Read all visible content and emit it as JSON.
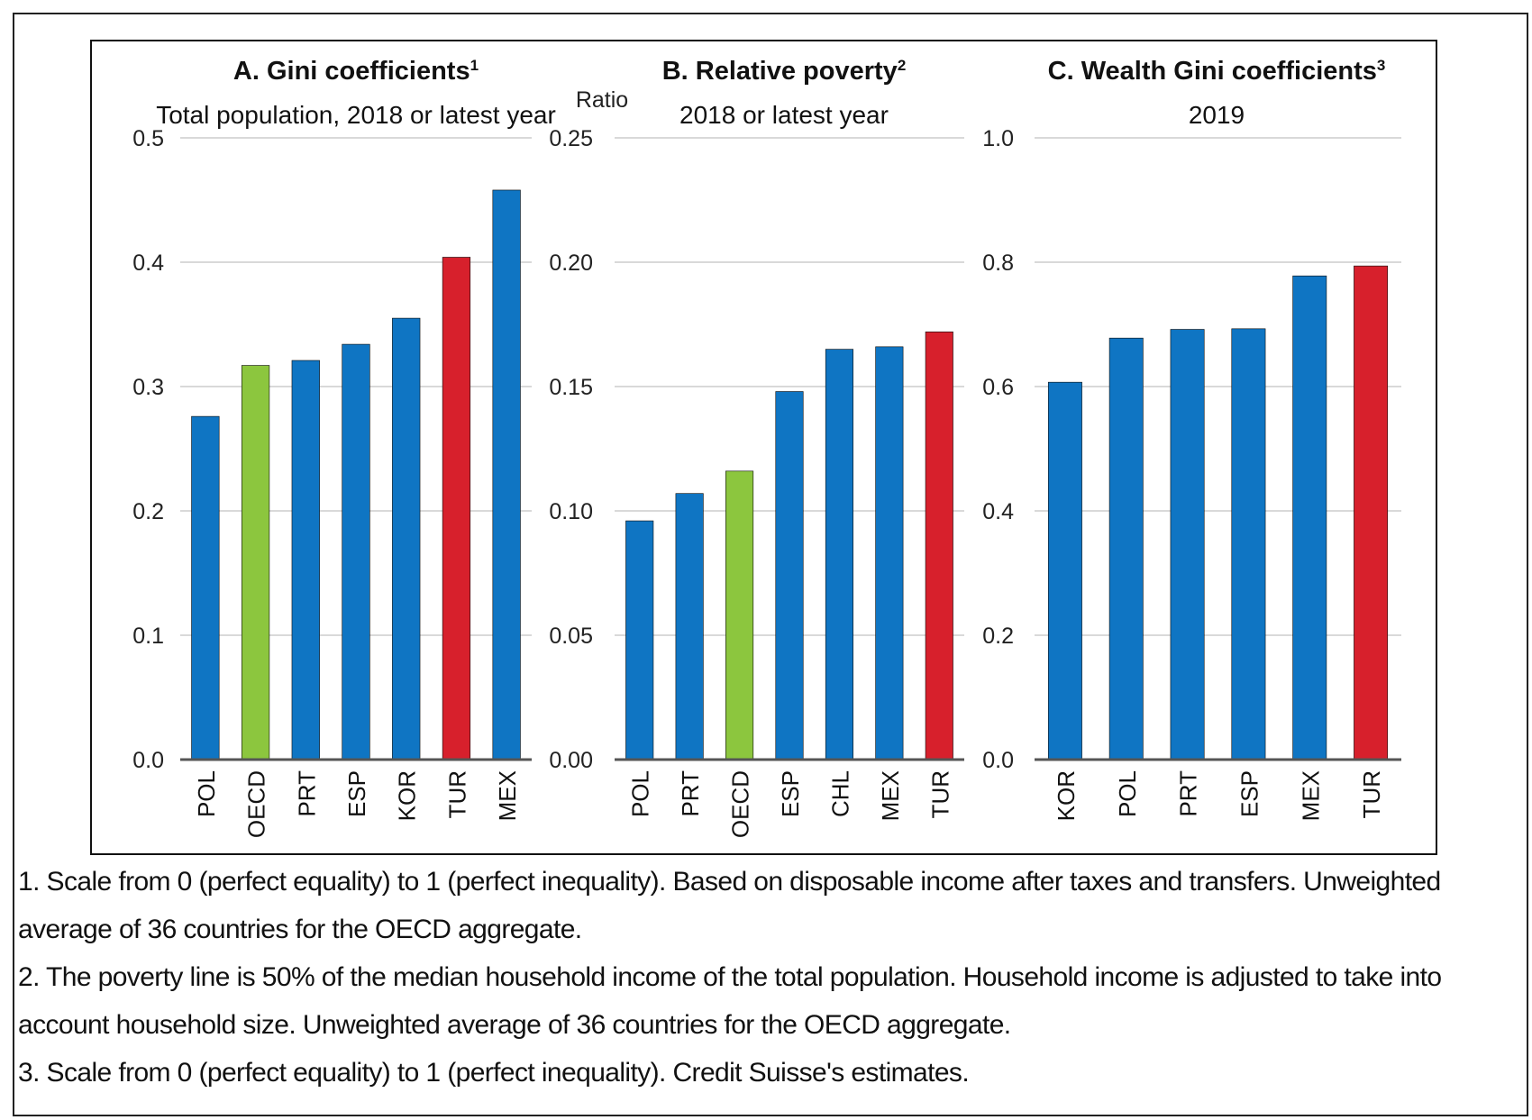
{
  "chart_data": [
    {
      "type": "bar",
      "title": "A. Gini coefficients",
      "title_sup": "1",
      "subtitle": "Total population, 2018 or latest year",
      "unit": "",
      "categories": [
        "POL",
        "OECD",
        "PRT",
        "ESP",
        "KOR",
        "TUR",
        "MEX"
      ],
      "values": [
        0.276,
        0.317,
        0.321,
        0.334,
        0.355,
        0.404,
        0.458
      ],
      "colors": [
        "#0f75c3",
        "#8cc63e",
        "#0f75c3",
        "#0f75c3",
        "#0f75c3",
        "#d7202c",
        "#0f75c3"
      ],
      "ylim": [
        0,
        0.5
      ],
      "yticks": [
        "0.0",
        "0.1",
        "0.2",
        "0.3",
        "0.4",
        "0.5"
      ],
      "grid": true
    },
    {
      "type": "bar",
      "title": "B. Relative poverty",
      "title_sup": "2",
      "subtitle": "2018 or latest year",
      "unit": "Ratio",
      "categories": [
        "POL",
        "PRT",
        "OECD",
        "ESP",
        "CHL",
        "MEX",
        "TUR"
      ],
      "values": [
        0.096,
        0.107,
        0.116,
        0.148,
        0.165,
        0.166,
        0.172
      ],
      "colors": [
        "#0f75c3",
        "#0f75c3",
        "#8cc63e",
        "#0f75c3",
        "#0f75c3",
        "#0f75c3",
        "#d7202c"
      ],
      "ylim": [
        0,
        0.25
      ],
      "yticks": [
        "0.00",
        "0.05",
        "0.10",
        "0.15",
        "0.20",
        "0.25"
      ],
      "grid": true
    },
    {
      "type": "bar",
      "title": "C. Wealth Gini coefficients",
      "title_sup": "3",
      "subtitle": "2019",
      "unit": "",
      "categories": [
        "KOR",
        "POL",
        "PRT",
        "ESP",
        "MEX",
        "TUR"
      ],
      "values": [
        0.607,
        0.678,
        0.692,
        0.693,
        0.778,
        0.794
      ],
      "colors": [
        "#0f75c3",
        "#0f75c3",
        "#0f75c3",
        "#0f75c3",
        "#0f75c3",
        "#d7202c"
      ],
      "ylim": [
        0,
        1.0
      ],
      "yticks": [
        "0.0",
        "0.2",
        "0.4",
        "0.6",
        "0.8",
        "1.0"
      ],
      "grid": true
    }
  ],
  "footnotes": [
    "1. Scale from 0 (perfect equality) to 1 (perfect inequality). Based on disposable income after taxes and transfers. Unweighted average of 36 countries for the OECD aggregate.",
    "2. The poverty line is 50% of the median household income of the total population. Household income is adjusted to take into account household size. Unweighted average of 36 countries for the OECD aggregate.",
    "3. Scale from 0 (perfect equality) to 1 (perfect inequality). Credit Suisse's estimates."
  ]
}
